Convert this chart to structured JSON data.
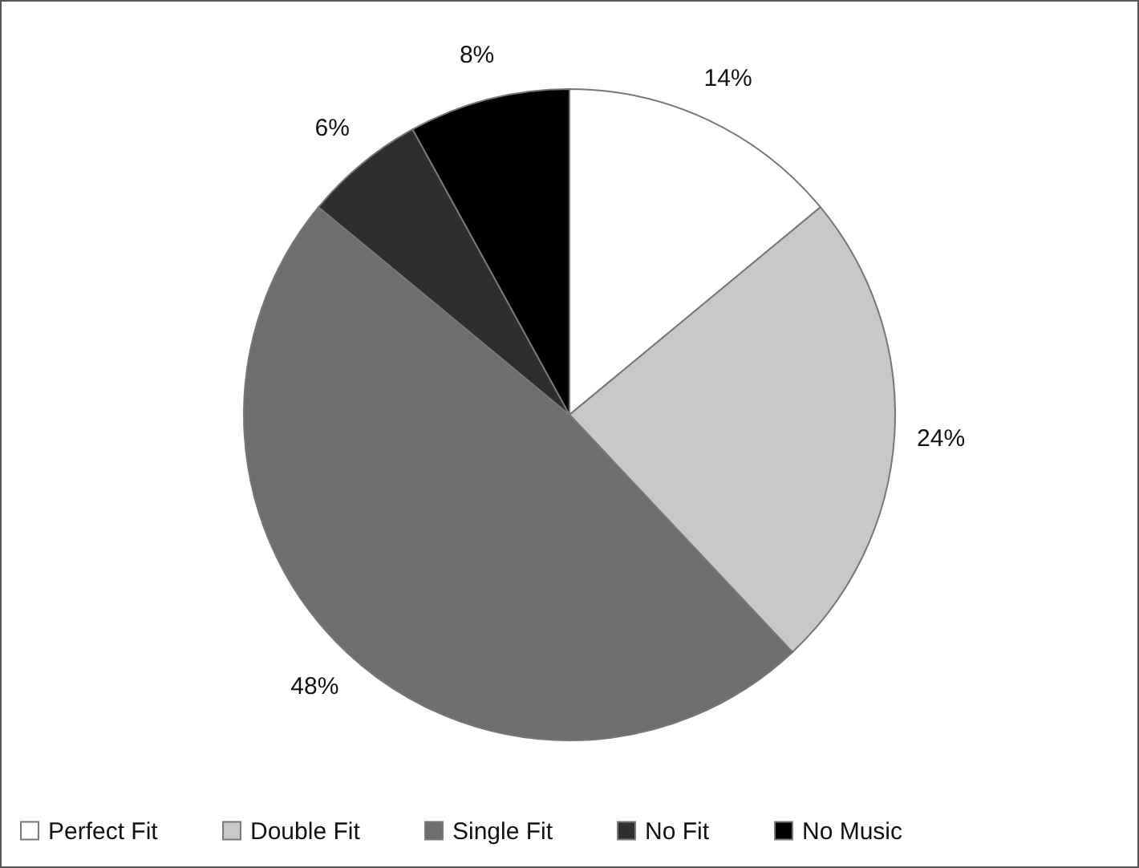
{
  "chart_data": {
    "type": "pie",
    "categories": [
      "Perfect Fit",
      "Double Fit",
      "Single Fit",
      "No Fit",
      "No Music"
    ],
    "values": [
      14,
      24,
      48,
      6,
      8
    ],
    "colors": [
      "#ffffff",
      "#c8c8c8",
      "#6e6e6e",
      "#2e2e2e",
      "#000000"
    ],
    "value_labels": [
      "14%",
      "24%",
      "48%",
      "6%",
      "8%"
    ],
    "legend": "bottom"
  }
}
